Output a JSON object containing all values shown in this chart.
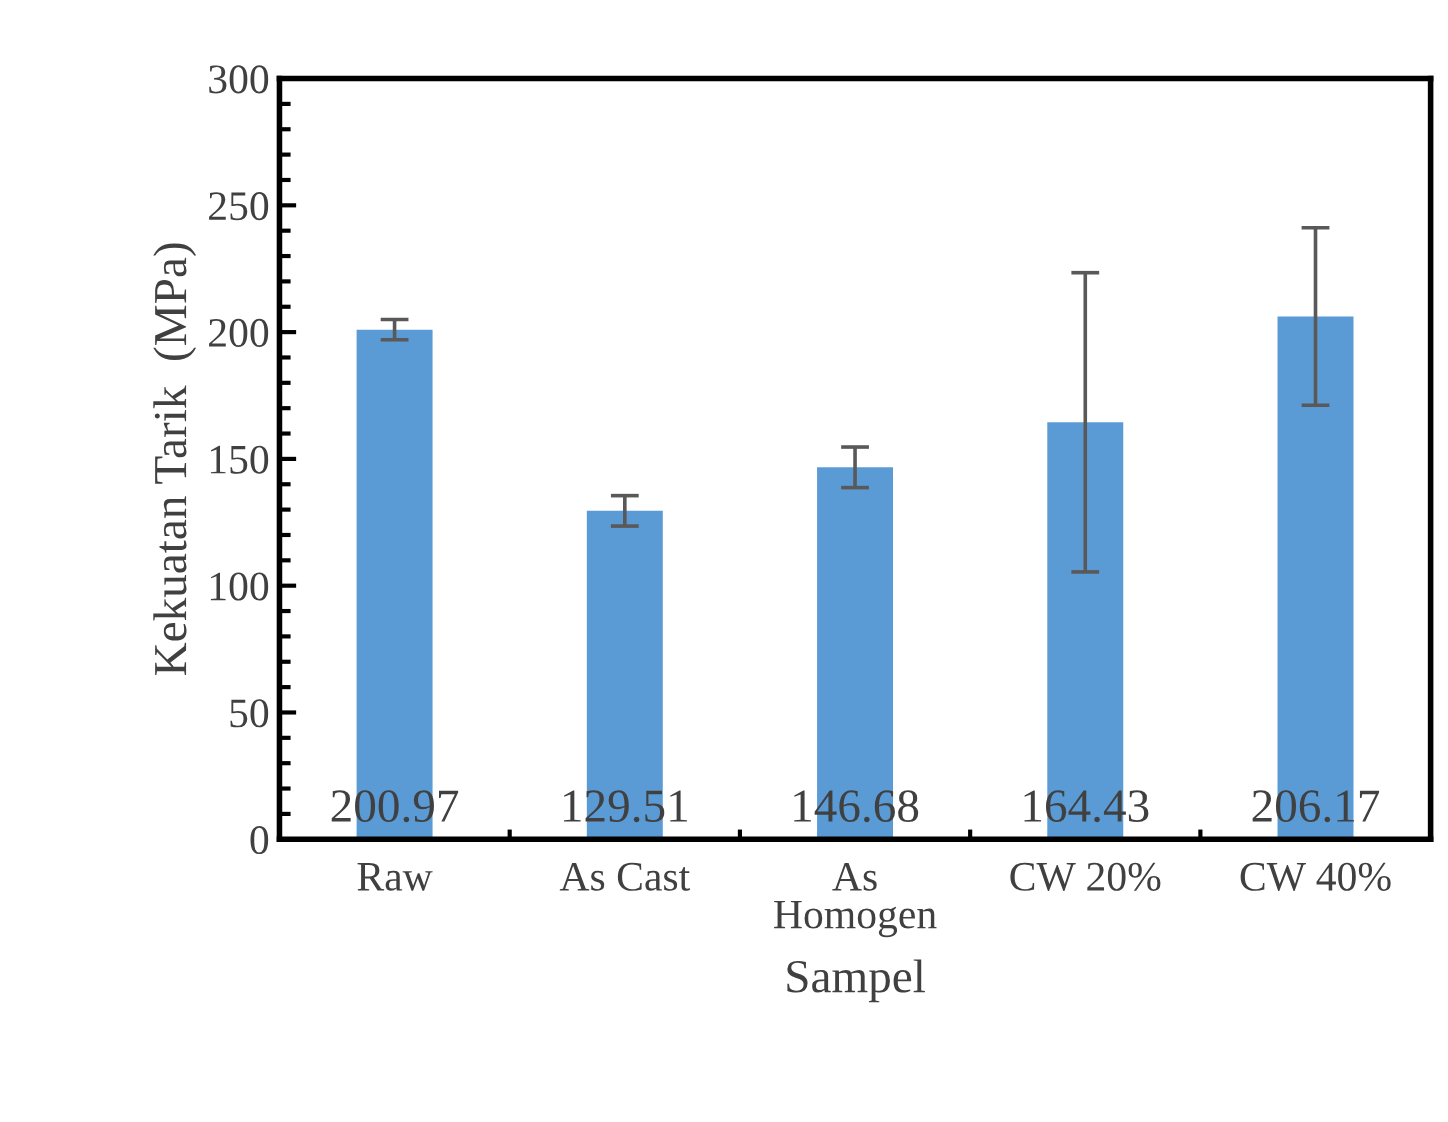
{
  "chart_data": {
    "type": "bar",
    "xlabel": "Sampel",
    "ylabel": "Kekuatan Tarik  (MPa)",
    "categories": [
      "Raw",
      "As Cast",
      "As\nHomogen",
      "CW 20%",
      "CW 40%"
    ],
    "values": [
      200.97,
      129.51,
      146.68,
      164.43,
      206.17
    ],
    "errors": [
      4,
      6,
      8,
      59,
      35
    ],
    "color": "#5b9bd5",
    "ylim": [
      0,
      300
    ],
    "yticks": [
      0,
      50,
      100,
      150,
      200,
      250,
      300
    ],
    "data_labels": true,
    "grid": false,
    "legend": false
  }
}
